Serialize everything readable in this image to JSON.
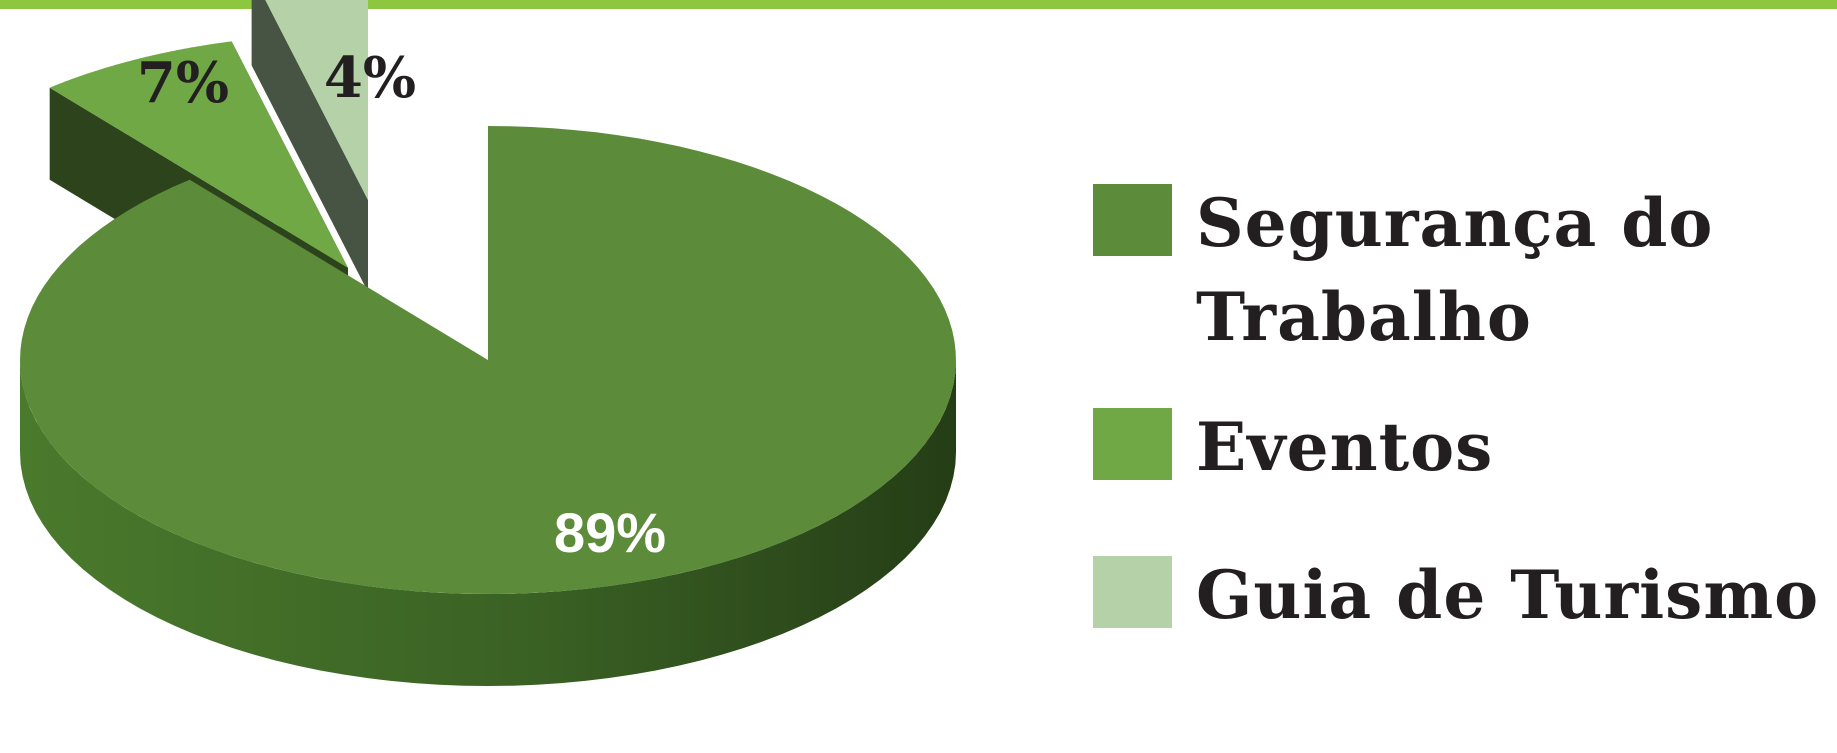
{
  "chart_data": {
    "type": "pie",
    "title": "",
    "slices": [
      {
        "label": "Segurança do Trabalho",
        "value": 89,
        "display": "89%",
        "color": "#5c8c3a"
      },
      {
        "label": "Eventos",
        "value": 7,
        "display": "7%",
        "color": "#6fa845"
      },
      {
        "label": "Guia de Turismo",
        "value": 4,
        "display": "4%",
        "color": "#b4d1a8"
      }
    ],
    "legend_position": "right",
    "style": "3d-exploded"
  },
  "colors": {
    "top_bar": "#8dc63f",
    "label_dark": "#231f20",
    "label_light": "#ffffff"
  }
}
